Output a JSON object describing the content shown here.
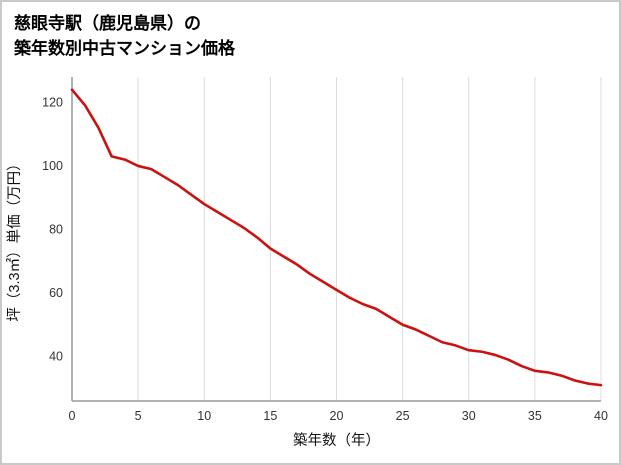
{
  "page": {
    "title_line1": "慈眼寺駅（鹿児島県）の",
    "title_line2": "築年数別中古マンション価格"
  },
  "chart_data": {
    "type": "line",
    "title": "慈眼寺駅（鹿児島県）の築年数別中古マンション価格",
    "xlabel": "築年数（年）",
    "ylabel": "坪（3.3㎡）単価（万円）",
    "x": [
      0,
      1,
      2,
      3,
      4,
      5,
      6,
      7,
      8,
      9,
      10,
      11,
      12,
      13,
      14,
      15,
      16,
      17,
      18,
      19,
      20,
      21,
      22,
      23,
      24,
      25,
      26,
      27,
      28,
      29,
      30,
      31,
      32,
      33,
      34,
      35,
      36,
      37,
      38,
      39,
      40
    ],
    "values": [
      124,
      119,
      112,
      103,
      102,
      100,
      99,
      96.5,
      94,
      91,
      88,
      85.5,
      83,
      80.5,
      77.5,
      74,
      71.5,
      69,
      66,
      63.5,
      61,
      58.5,
      56.5,
      55,
      52.5,
      50,
      48.5,
      46.5,
      44.5,
      43.5,
      42,
      41.5,
      40.5,
      39,
      37,
      35.5,
      35,
      34,
      32.5,
      31.5,
      31
    ],
    "xlim": [
      0,
      40
    ],
    "ylim": [
      26,
      128
    ],
    "x_ticks": [
      0,
      5,
      10,
      15,
      20,
      25,
      30,
      35,
      40
    ],
    "y_ticks": [
      40,
      60,
      80,
      100,
      120
    ],
    "line_color": "#cc1111",
    "grid_color": "#dcdcdc",
    "axis_color": "#9a9a9a",
    "tick_text_color": "#333333",
    "grid": "vertical-only",
    "legend": "none"
  }
}
